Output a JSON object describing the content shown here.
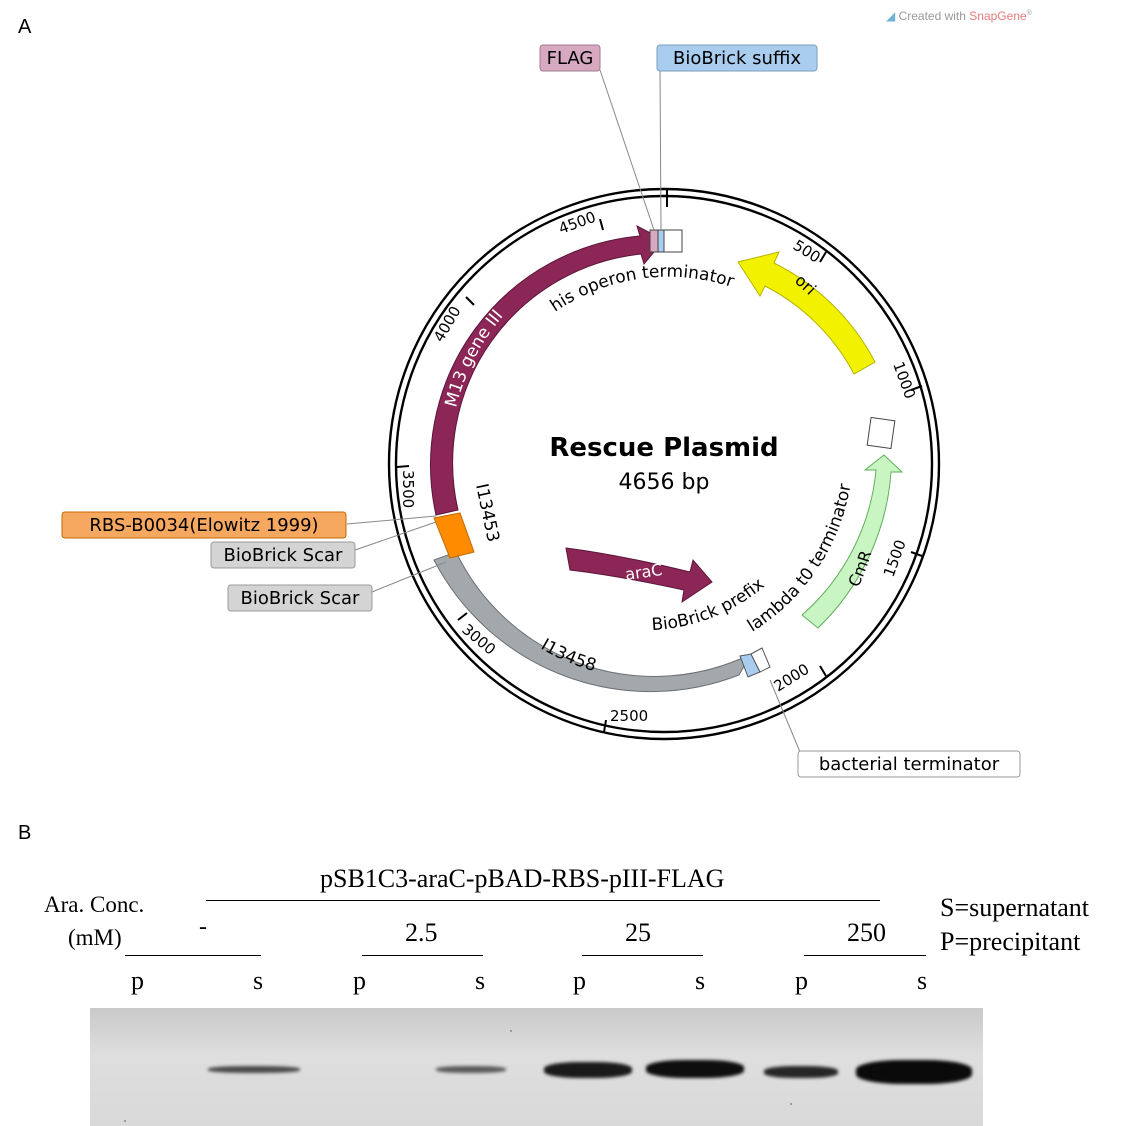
{
  "panel_a": {
    "letter": "A"
  },
  "watermark": {
    "prefix": "Created with ",
    "brand": "SnapGene",
    "mark": "®"
  },
  "plasmid": {
    "name": "Rescue Plasmid",
    "size": "4656 bp",
    "ticks": [
      "500",
      "1000",
      "1500",
      "2000",
      "2500",
      "3000",
      "3500",
      "4000",
      "4500"
    ],
    "features": {
      "m13": "M13 gene III",
      "ori": "ori",
      "cmr": "CmR",
      "arac": "araC",
      "i13453": "I13453",
      "i13458": "I13458",
      "his_term": "his operon terminator",
      "lambda_term": "lambda t0 terminator",
      "bb_prefix": "BioBrick prefix"
    },
    "callouts": {
      "flag": "FLAG",
      "bb_suffix": "BioBrick suffix",
      "rbs": "RBS-B0034(Elowitz 1999)",
      "bb_scar_1": "BioBrick Scar",
      "bb_scar_2": "BioBrick Scar",
      "bact_term": "bacterial terminator"
    },
    "colors": {
      "m13": "#8b2657",
      "arac": "#8b2657",
      "ori": "#f2f200",
      "cmr": "#c8f5c2",
      "i13458": "#a3a8ac",
      "rbs": "#ff8c00",
      "flag": "#d6a9c0",
      "bb_suffix": "#a9cdee"
    }
  },
  "panel_b": {
    "letter": "B",
    "construct": "pSB1C3-araC-pBAD-RBS-pIII-FLAG",
    "conc_label_1": "Ara. Conc.",
    "conc_label_2": "(mM)",
    "concentrations": [
      "-",
      "2.5",
      "25",
      "250"
    ],
    "lanes": [
      "p",
      "s",
      "p",
      "s",
      "p",
      "s",
      "p",
      "s"
    ],
    "legend_1": "S=supernatant",
    "legend_2": "P=precipitant"
  }
}
